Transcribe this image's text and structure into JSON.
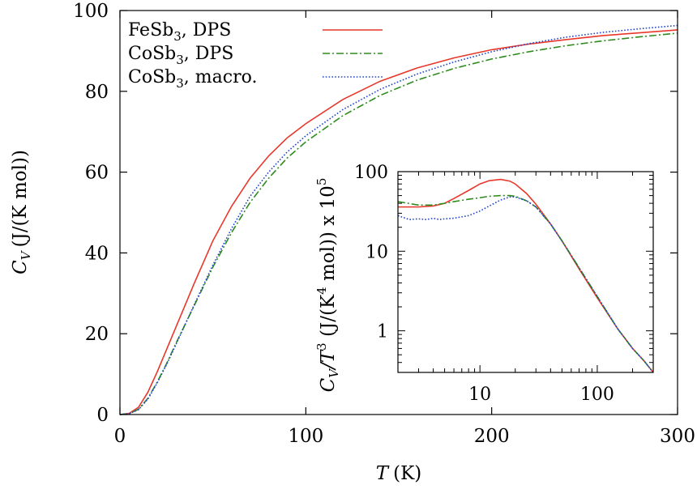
{
  "chart_data": [
    {
      "type": "line",
      "panel": "main",
      "xlabel": {
        "symbol": "T",
        "unit": "(K)"
      },
      "ylabel": {
        "symbol": "C",
        "sub": "V",
        "unit": "(J/(K mol))"
      },
      "xlim": [
        0,
        300
      ],
      "ylim": [
        0,
        100
      ],
      "x_scale": "linear",
      "y_scale": "linear",
      "xticks": [
        "0",
        "100",
        "200",
        "300"
      ],
      "yticks": [
        "0",
        "20",
        "40",
        "60",
        "80",
        "100"
      ],
      "grid": false,
      "legend_position": "top-left",
      "series": [
        {
          "name": "FeSb3, DPS",
          "legend": {
            "base": "FeSb",
            "sub": "3",
            "rest": ", DPS"
          },
          "color": "#e8372a",
          "dash": "solid",
          "x": [
            0,
            5,
            10,
            15,
            20,
            25,
            30,
            40,
            50,
            60,
            70,
            80,
            90,
            100,
            120,
            140,
            160,
            180,
            200,
            220,
            240,
            260,
            280,
            300
          ],
          "y": [
            0,
            0.3,
            1.8,
            5.5,
            10.5,
            16,
            21.5,
            32.5,
            43,
            51.5,
            58.5,
            64,
            68.5,
            72,
            78,
            82.5,
            85.8,
            88.3,
            90.3,
            91.7,
            92.8,
            93.8,
            94.5,
            95.2
          ]
        },
        {
          "name": "CoSb3, DPS",
          "legend": {
            "base": "CoSb",
            "sub": "3",
            "rest": ", DPS"
          },
          "color": "#2e8b1e",
          "dash": "dashdot",
          "x": [
            0,
            5,
            10,
            15,
            20,
            25,
            30,
            40,
            50,
            60,
            70,
            80,
            90,
            100,
            120,
            140,
            160,
            180,
            200,
            220,
            240,
            260,
            280,
            300
          ],
          "y": [
            0,
            0.2,
            1.3,
            4,
            8,
            12.5,
            17.5,
            27,
            36.5,
            45,
            52.5,
            58.5,
            63.5,
            67.5,
            74,
            79,
            82.8,
            85.7,
            88,
            89.8,
            91.3,
            92.5,
            93.5,
            94.4
          ]
        },
        {
          "name": "CoSb3, macro.",
          "legend": {
            "base": "CoSb",
            "sub": "3",
            "rest": ", macro."
          },
          "color": "#2244cc",
          "dash": "dotted",
          "x": [
            0,
            5,
            10,
            15,
            20,
            25,
            30,
            40,
            50,
            60,
            70,
            80,
            90,
            100,
            120,
            140,
            160,
            180,
            200,
            220,
            240,
            260,
            280,
            300
          ],
          "y": [
            0,
            0.2,
            1.2,
            3.8,
            7.8,
            12.3,
            17.2,
            27.2,
            37,
            46,
            54,
            60,
            65,
            69,
            75.5,
            80.5,
            84.3,
            87.3,
            89.8,
            91.8,
            93.4,
            94.6,
            95.5,
            96.3
          ]
        }
      ]
    },
    {
      "type": "line",
      "panel": "inset",
      "ylabel": {
        "symbol": "C",
        "sub": "V",
        "mid": "/T",
        "sup": "3",
        "unit_pre": " (J/(K",
        "unit_sup": "4",
        "unit_post": " mol)) x 10",
        "exp_sup": "5"
      },
      "xlim": [
        2,
        300
      ],
      "ylim": [
        0.3,
        100
      ],
      "x_scale": "log",
      "y_scale": "log",
      "xticks": [
        "10",
        "100"
      ],
      "yticks": [
        "1",
        "10",
        "100"
      ],
      "grid": false,
      "series": [
        {
          "name": "FeSb3, DPS",
          "color": "#e8372a",
          "dash": "solid",
          "x": [
            2,
            3,
            4,
            5,
            6,
            8,
            10,
            12,
            15,
            18,
            20,
            25,
            30,
            40,
            50,
            70,
            100,
            150,
            200,
            250,
            300
          ],
          "y": [
            36,
            36,
            37,
            40,
            46,
            58,
            70,
            77,
            80,
            76,
            70,
            53,
            39,
            22,
            13.5,
            6,
            2.6,
            1.05,
            0.6,
            0.42,
            0.3
          ]
        },
        {
          "name": "CoSb3, DPS",
          "color": "#2e8b1e",
          "dash": "dashdot",
          "x": [
            2,
            3,
            4,
            5,
            6,
            8,
            10,
            12,
            15,
            18,
            20,
            25,
            30,
            40,
            50,
            70,
            100,
            150,
            200,
            250,
            300
          ],
          "y": [
            42,
            38,
            38,
            40,
            42,
            45,
            47,
            49,
            50,
            50,
            49,
            43,
            36,
            22,
            13.5,
            6.2,
            2.7,
            1.05,
            0.6,
            0.42,
            0.3
          ]
        },
        {
          "name": "CoSb3, macro.",
          "color": "#2244cc",
          "dash": "dotted",
          "x": [
            2,
            2.5,
            3,
            3.5,
            4,
            4.5,
            5,
            6,
            8,
            10,
            12,
            15,
            18,
            20,
            25,
            30,
            40,
            50,
            70,
            100,
            150,
            200,
            250,
            300
          ],
          "y": [
            28,
            25,
            25.5,
            25,
            26,
            25,
            25.5,
            26,
            28,
            32,
            37,
            44,
            48,
            48,
            43,
            36,
            22,
            13.5,
            6.2,
            2.7,
            1.05,
            0.6,
            0.42,
            0.3
          ]
        }
      ]
    }
  ]
}
